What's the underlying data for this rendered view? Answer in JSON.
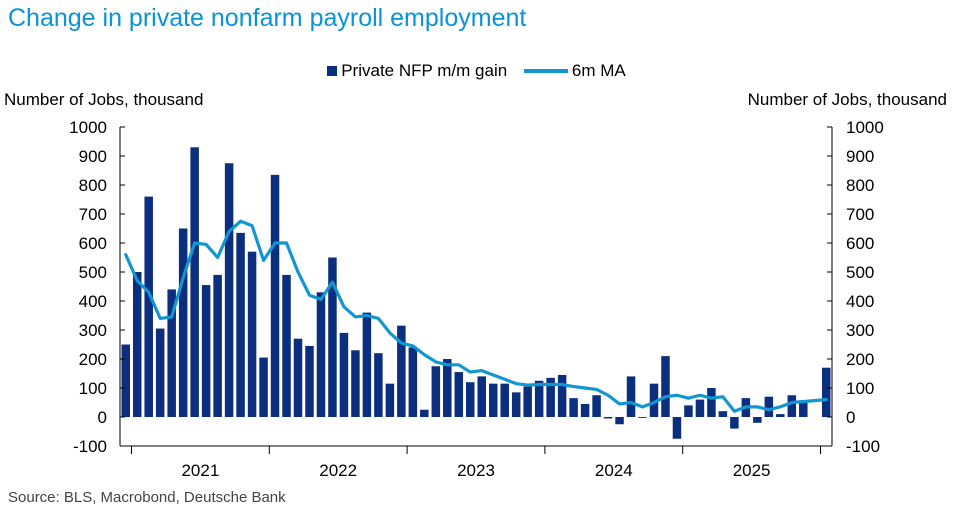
{
  "title": "Change in private nonfarm payroll employment",
  "source": "Source: BLS, Macrobond, Deutsche Bank",
  "colors": {
    "title": "#0a93d6",
    "bars": "#0b2f7e",
    "line": "#1196d2"
  },
  "chart_data": {
    "type": "bar",
    "title": "Change in private nonfarm payroll employment",
    "ylabel": "Number of Jobs, thousand",
    "ylabel_right": "Number of Jobs, thousand",
    "ylim": [
      -100,
      1000
    ],
    "yticks": [
      "-100",
      "0",
      "100",
      "200",
      "300",
      "400",
      "500",
      "600",
      "700",
      "800",
      "900",
      "1000"
    ],
    "year_labels": [
      "2021",
      "2022",
      "2023",
      "2024",
      "2025"
    ],
    "legend": {
      "placement": "top-center",
      "bar_label": "Private NFP m/m gain",
      "line_label": "6m MA"
    },
    "months": [
      "2020-12",
      "2021-01",
      "2021-02",
      "2021-03",
      "2021-04",
      "2021-05",
      "2021-06",
      "2021-07",
      "2021-08",
      "2021-09",
      "2021-10",
      "2021-11",
      "2021-12",
      "2022-01",
      "2022-02",
      "2022-03",
      "2022-04",
      "2022-05",
      "2022-06",
      "2022-07",
      "2022-08",
      "2022-09",
      "2022-10",
      "2022-11",
      "2022-12",
      "2023-01",
      "2023-02",
      "2023-03",
      "2023-04",
      "2023-05",
      "2023-06",
      "2023-07",
      "2023-08",
      "2023-09",
      "2023-10",
      "2023-11",
      "2023-12",
      "2024-01",
      "2024-02",
      "2024-03",
      "2024-04",
      "2024-05",
      "2024-06",
      "2024-07",
      "2024-08",
      "2024-09",
      "2024-10",
      "2024-11",
      "2024-12",
      "2025-01",
      "2025-02",
      "2025-03",
      "2025-04",
      "2025-05",
      "2025-06",
      "2025-07",
      "2025-08",
      "2025-09",
      "2025-10",
      "2025-11",
      "2025-12",
      "2026-01"
    ],
    "series": [
      {
        "name": "Private NFP m/m gain",
        "type": "bar",
        "values": [
          250,
          500,
          760,
          305,
          440,
          650,
          930,
          455,
          490,
          875,
          635,
          570,
          205,
          835,
          490,
          270,
          245,
          430,
          550,
          290,
          230,
          360,
          220,
          115,
          315,
          240,
          25,
          175,
          200,
          155,
          120,
          140,
          115,
          115,
          85,
          105,
          125,
          135,
          145,
          65,
          45,
          75,
          -5,
          -25,
          140,
          -3,
          115,
          210,
          -75,
          40,
          60,
          100,
          20,
          -40,
          65,
          -20,
          70,
          10,
          75,
          55,
          170
        ],
        "x_months": [
          "2020-12",
          "2021-01",
          "2021-02",
          "2021-03",
          "2021-04",
          "2021-05",
          "2021-06",
          "2021-07",
          "2021-08",
          "2021-09",
          "2021-10",
          "2021-11",
          "2021-12",
          "2022-01",
          "2022-02",
          "2022-03",
          "2022-04",
          "2022-05",
          "2022-06",
          "2022-07",
          "2022-08",
          "2022-09",
          "2022-10",
          "2022-11",
          "2022-12",
          "2023-01",
          "2023-02",
          "2023-03",
          "2023-04",
          "2023-05",
          "2023-06",
          "2023-07",
          "2023-08",
          "2023-09",
          "2023-10",
          "2023-11",
          "2023-12",
          "2024-01",
          "2024-02",
          "2024-03",
          "2024-04",
          "2024-05",
          "2024-06",
          "2024-07",
          "2024-08",
          "2024-09",
          "2024-10",
          "2024-11",
          "2024-12",
          "2025-01",
          "2025-02",
          "2025-03",
          "2025-04",
          "2025-05",
          "2025-06",
          "2025-07",
          "2025-08",
          "2025-09",
          "2025-10",
          "2025-11",
          "2026-01"
        ]
      },
      {
        "name": "6m MA",
        "type": "line",
        "values": [
          560,
          470,
          430,
          340,
          345,
          480,
          600,
          595,
          550,
          640,
          675,
          660,
          540,
          600,
          600,
          500,
          420,
          405,
          465,
          380,
          345,
          350,
          340,
          290,
          255,
          245,
          215,
          190,
          180,
          180,
          155,
          160,
          145,
          130,
          115,
          110,
          112,
          112,
          112,
          105,
          100,
          95,
          75,
          45,
          50,
          35,
          50,
          70,
          75,
          65,
          75,
          65,
          70,
          20,
          35,
          35,
          25,
          35,
          50,
          60
        ],
        "x_months": [
          "2020-12",
          "2021-01",
          "2021-02",
          "2021-03",
          "2021-04",
          "2021-05",
          "2021-06",
          "2021-07",
          "2021-08",
          "2021-09",
          "2021-10",
          "2021-11",
          "2021-12",
          "2022-01",
          "2022-02",
          "2022-03",
          "2022-04",
          "2022-05",
          "2022-06",
          "2022-07",
          "2022-08",
          "2022-09",
          "2022-10",
          "2022-11",
          "2022-12",
          "2023-01",
          "2023-02",
          "2023-03",
          "2023-04",
          "2023-05",
          "2023-06",
          "2023-07",
          "2023-08",
          "2023-09",
          "2023-10",
          "2023-11",
          "2023-12",
          "2024-01",
          "2024-02",
          "2024-03",
          "2024-04",
          "2024-05",
          "2024-06",
          "2024-07",
          "2024-08",
          "2024-09",
          "2024-10",
          "2024-11",
          "2024-12",
          "2025-01",
          "2025-02",
          "2025-03",
          "2025-04",
          "2025-05",
          "2025-06",
          "2025-07",
          "2025-08",
          "2025-09",
          "2025-10",
          "2026-01"
        ]
      }
    ]
  }
}
